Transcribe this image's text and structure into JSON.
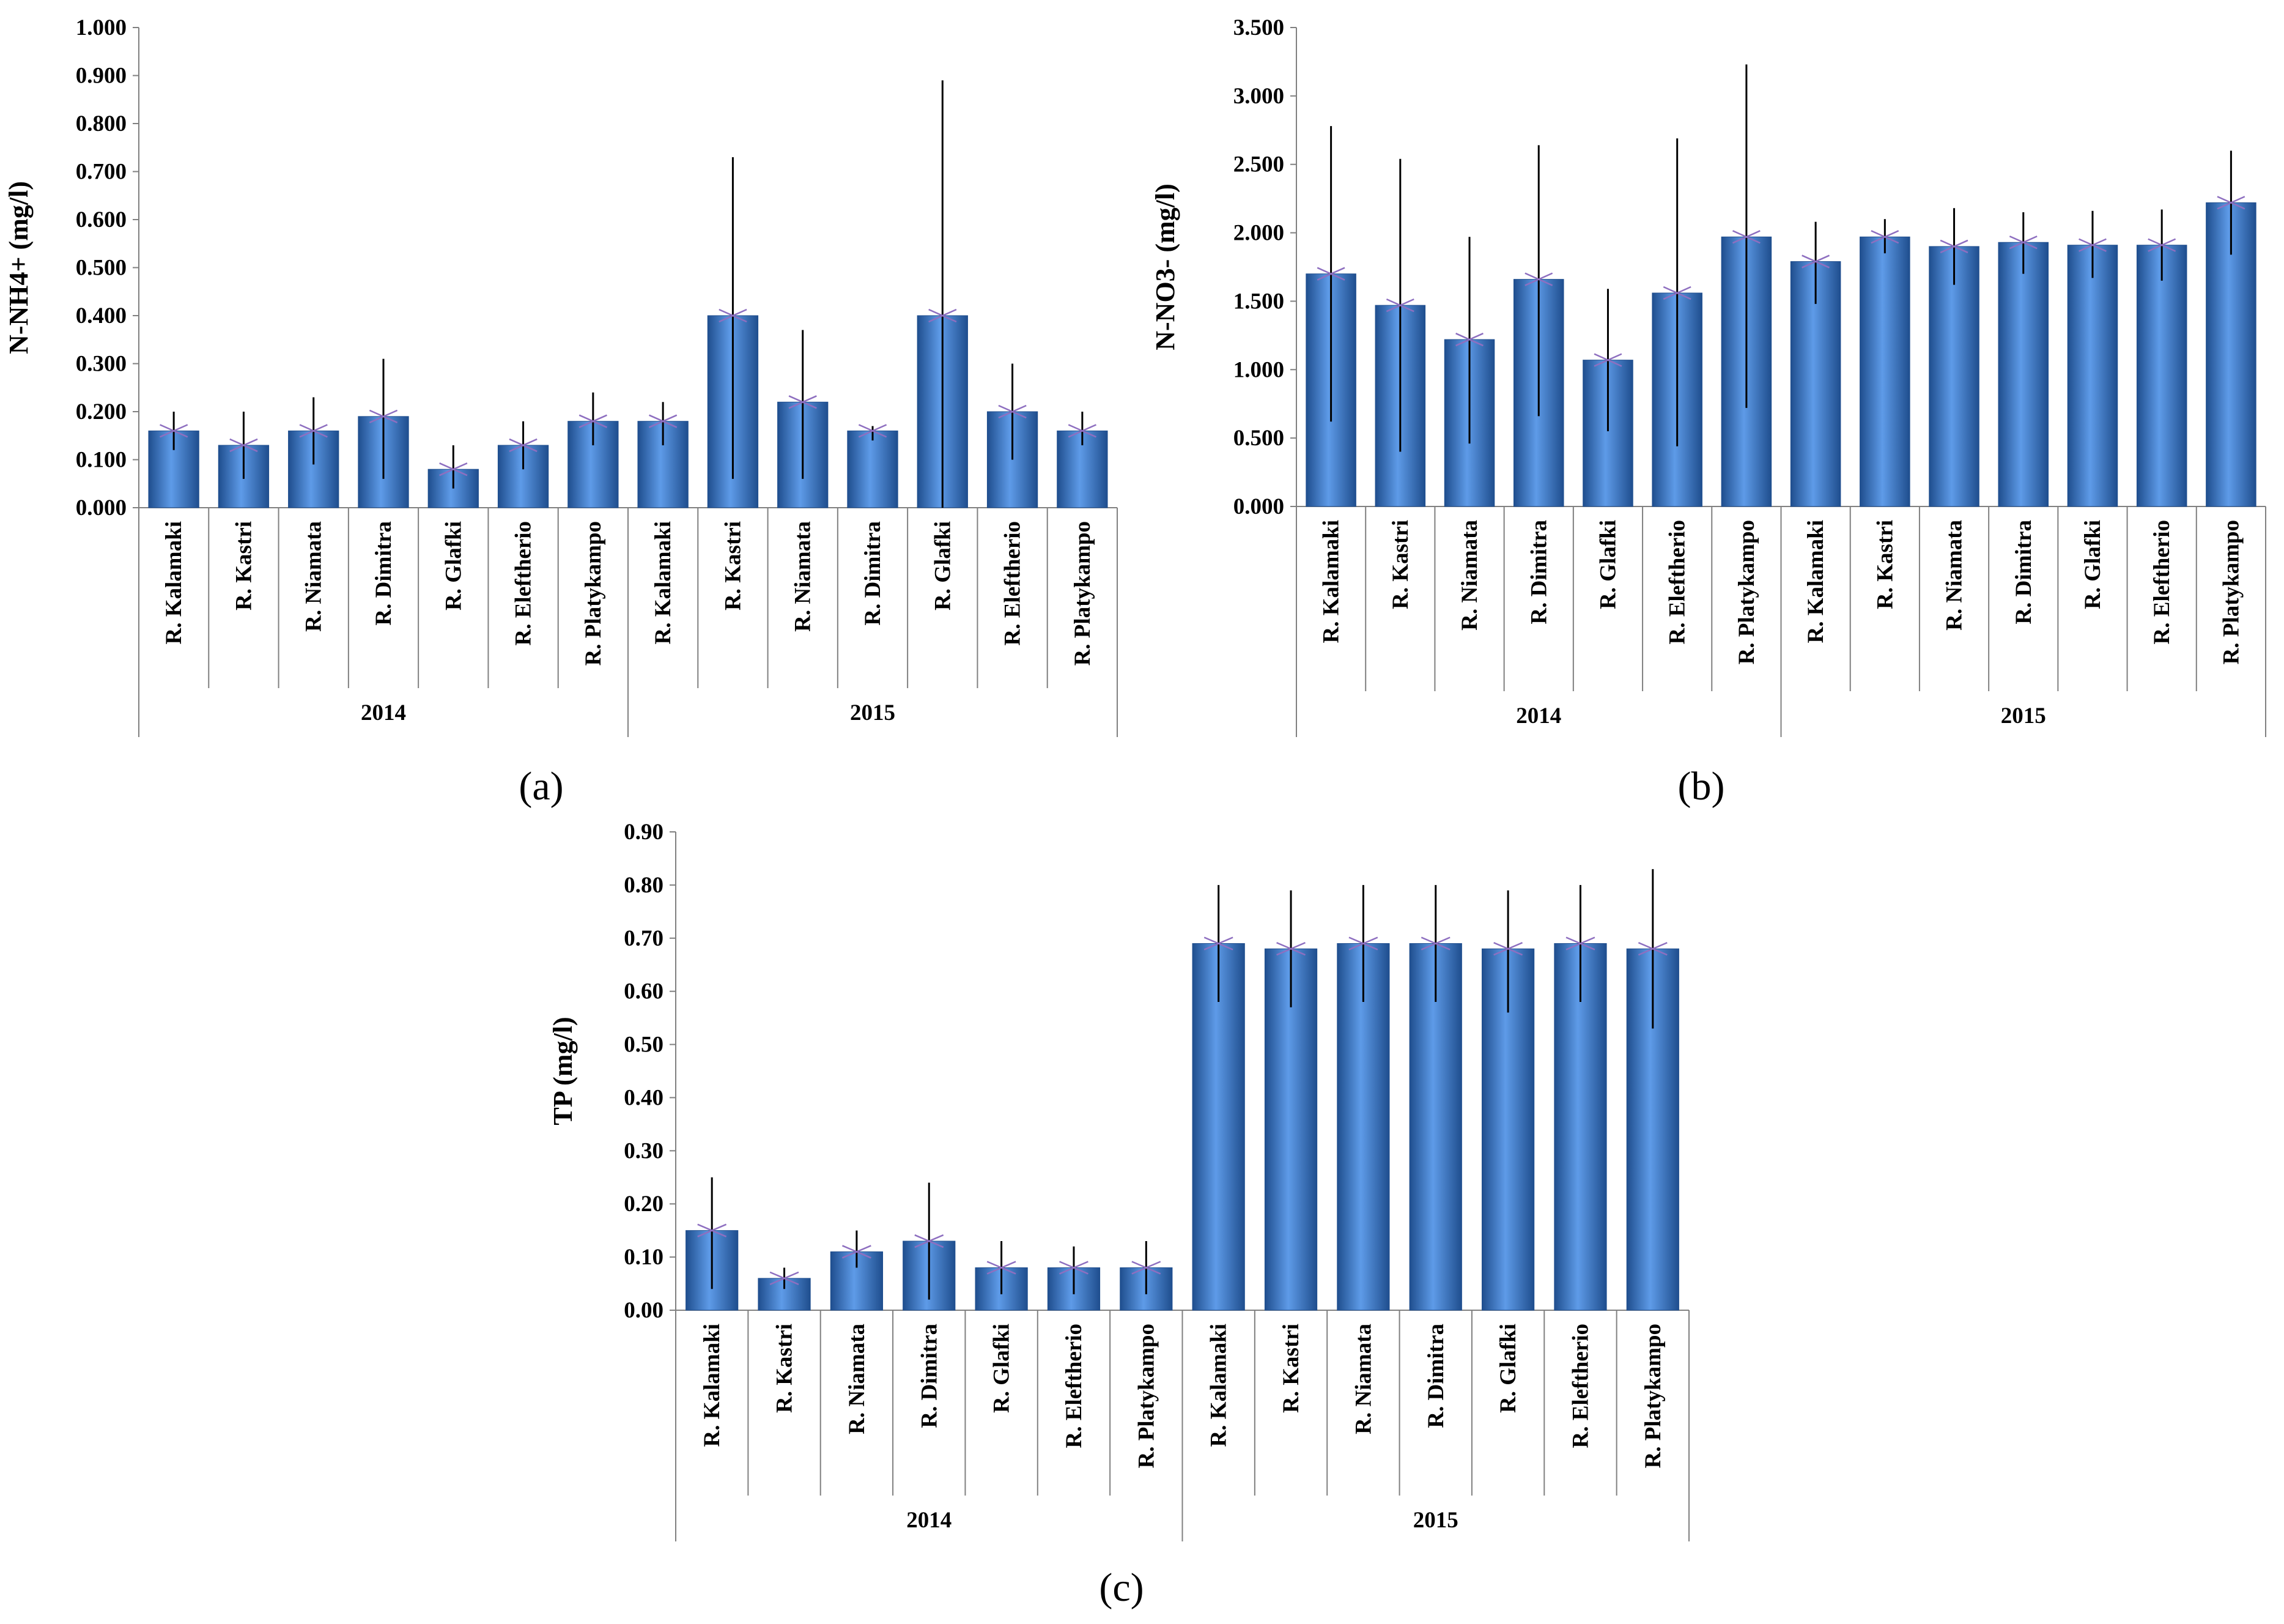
{
  "figure": {
    "bar_color": "#2E6FC2",
    "bar_highlight": "#5E9BE8",
    "bar_dark": "#1F4E8E",
    "error_color": "#000000",
    "axis_color": "#808080",
    "marker_color": "#8E6FC0"
  },
  "chart_data": [
    {
      "id": "a",
      "type": "bar",
      "panel_label": "(a)",
      "panel_letter": "a",
      "ylabel": "N-NH4+ (mg/l)",
      "ylim": [
        0,
        1.0
      ],
      "yticks": [
        "0.000",
        "0.100",
        "0.200",
        "0.300",
        "0.400",
        "0.500",
        "0.600",
        "0.700",
        "0.800",
        "0.900",
        "1.000"
      ],
      "groups": [
        {
          "label": "2014",
          "categories": [
            "R. Kalamaki",
            "R. Kastri",
            "R. Niamata",
            "R. Dimitra",
            "R. Glafki",
            "R. Eleftherio",
            "R. Platykampo"
          ]
        },
        {
          "label": "2015",
          "categories": [
            "R. Kalamaki",
            "R. Kastri",
            "R. Niamata",
            "R. Dimitra",
            "R. Glafki",
            "R. Eleftherio",
            "R. Platykampo"
          ]
        }
      ],
      "values": [
        0.16,
        0.13,
        0.16,
        0.19,
        0.08,
        0.13,
        0.18,
        0.18,
        0.4,
        0.22,
        0.16,
        0.4,
        0.2,
        0.16
      ],
      "err_low": [
        0.12,
        0.06,
        0.09,
        0.06,
        0.04,
        0.08,
        0.13,
        0.13,
        0.06,
        0.06,
        0.14,
        0.0,
        0.1,
        0.13
      ],
      "err_high": [
        0.2,
        0.2,
        0.23,
        0.31,
        0.13,
        0.18,
        0.24,
        0.22,
        0.73,
        0.37,
        0.17,
        0.89,
        0.3,
        0.2
      ]
    },
    {
      "id": "b",
      "type": "bar",
      "panel_label": "(b)",
      "panel_letter": "b",
      "ylabel": "N-NO3- (mg/l)",
      "ylim": [
        0,
        3.5
      ],
      "yticks": [
        "0.000",
        "0.500",
        "1.000",
        "1.500",
        "2.000",
        "2.500",
        "3.000",
        "3.500"
      ],
      "groups": [
        {
          "label": "2014",
          "categories": [
            "R. Kalamaki",
            "R. Kastri",
            "R. Niamata",
            "R. Dimitra",
            "R. Glafki",
            "R. Eleftherio",
            "R. Platykampo"
          ]
        },
        {
          "label": "2015",
          "categories": [
            "R. Kalamaki",
            "R. Kastri",
            "R. Niamata",
            "R. Dimitra",
            "R. Glafki",
            "R. Eleftherio",
            "R. Platykampo"
          ]
        }
      ],
      "values": [
        1.7,
        1.47,
        1.22,
        1.66,
        1.07,
        1.56,
        1.97,
        1.79,
        1.97,
        1.9,
        1.93,
        1.91,
        1.91,
        2.22
      ],
      "err_low": [
        0.62,
        0.4,
        0.46,
        0.66,
        0.55,
        0.44,
        0.72,
        1.48,
        1.85,
        1.62,
        1.7,
        1.67,
        1.65,
        1.84
      ],
      "err_high": [
        2.78,
        2.54,
        1.97,
        2.64,
        1.59,
        2.69,
        3.23,
        2.08,
        2.1,
        2.18,
        2.15,
        2.16,
        2.17,
        2.6
      ]
    },
    {
      "id": "c",
      "type": "bar",
      "panel_label": "(c)",
      "panel_letter": "c",
      "ylabel": "TP (mg/l)",
      "ylim": [
        0,
        0.9
      ],
      "yticks": [
        "0.00",
        "0.10",
        "0.20",
        "0.30",
        "0.40",
        "0.50",
        "0.60",
        "0.70",
        "0.80",
        "0.90"
      ],
      "groups": [
        {
          "label": "2014",
          "categories": [
            "R. Kalamaki",
            "R. Kastri",
            "R. Niamata",
            "R. Dimitra",
            "R. Glafki",
            "R. Eleftherio",
            "R. Platykampo"
          ]
        },
        {
          "label": "2015",
          "categories": [
            "R. Kalamaki",
            "R. Kastri",
            "R. Niamata",
            "R. Dimitra",
            "R. Glafki",
            "R. Eleftherio",
            "R. Platykampo"
          ]
        }
      ],
      "values": [
        0.15,
        0.06,
        0.11,
        0.13,
        0.08,
        0.08,
        0.08,
        0.69,
        0.68,
        0.69,
        0.69,
        0.68,
        0.69,
        0.68
      ],
      "err_low": [
        0.04,
        0.04,
        0.08,
        0.02,
        0.03,
        0.03,
        0.03,
        0.58,
        0.57,
        0.58,
        0.58,
        0.56,
        0.58,
        0.53
      ],
      "err_high": [
        0.25,
        0.08,
        0.15,
        0.24,
        0.13,
        0.12,
        0.13,
        0.8,
        0.79,
        0.8,
        0.8,
        0.79,
        0.8,
        0.83
      ]
    }
  ]
}
